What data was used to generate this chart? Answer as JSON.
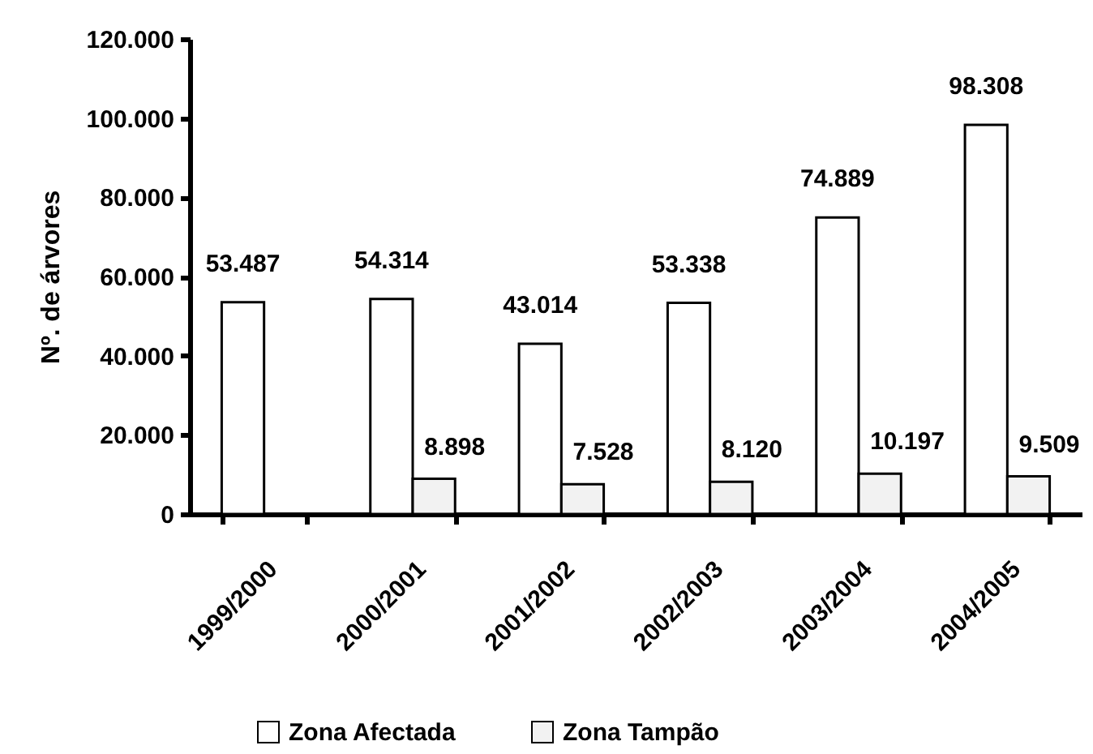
{
  "chart_data": {
    "type": "bar",
    "ylabel": "Nº. de árvores",
    "categories": [
      "1999/2000",
      "2000/2001",
      "2001/2002",
      "2002/2003",
      "2003/2004",
      "2004/2005"
    ],
    "series": [
      {
        "name": "Zona Afectada",
        "color": "#ffffff",
        "values": [
          53487,
          54314,
          43014,
          53338,
          74889,
          98308
        ],
        "value_labels": [
          "53.487",
          "54.314",
          "43.014",
          "53.338",
          "74.889",
          "98.308"
        ]
      },
      {
        "name": "Zona Tampão",
        "color": "#f2f2f2",
        "values": [
          null,
          8898,
          7528,
          8120,
          10197,
          9509
        ],
        "value_labels": [
          null,
          "8.898",
          "7.528",
          "8.120",
          "10.197",
          "9.509"
        ]
      }
    ],
    "ylim": [
      0,
      120000
    ],
    "yticks": [
      0,
      {
        "value": 20000,
        "label": "20.000"
      },
      {
        "value": 40000,
        "label": "40.000"
      },
      {
        "value": 60000,
        "label": "60.000"
      },
      {
        "value": 80000,
        "label": "80.000"
      },
      {
        "value": 100000,
        "label": "100.000"
      },
      {
        "value": 120000,
        "label": "120.000"
      }
    ],
    "grid": false,
    "legend": "bottom"
  }
}
